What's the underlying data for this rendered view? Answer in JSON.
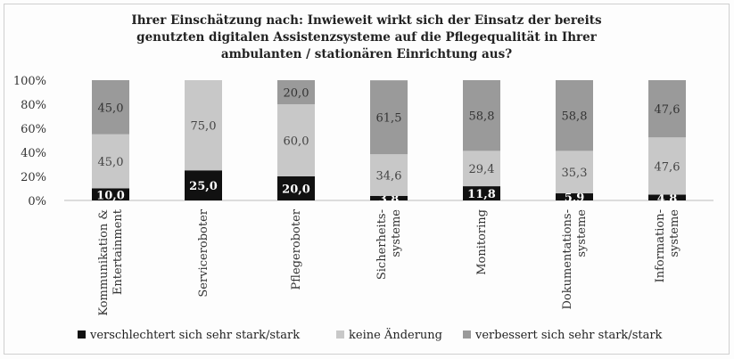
{
  "chart_data": {
    "type": "bar",
    "stacked": true,
    "title": [
      "Ihrer Einschätzung nach: Inwieweit wirkt sich der Einsatz der bereits",
      "genutzten digitalen Assistenzsysteme auf die Pflegequalität in Ihrer",
      "ambulanten / stationären Einrichtung aus?"
    ],
    "categories": [
      [
        "Kommunikation &",
        "Entertainment"
      ],
      [
        "Serviceroboter"
      ],
      [
        "Pflegeroboter"
      ],
      [
        "Sicherheits-",
        "systeme"
      ],
      [
        "Monitoring"
      ],
      [
        "Dokumentations-",
        "systeme"
      ],
      [
        "Information-",
        "systeme"
      ]
    ],
    "series": [
      {
        "name": "verschlechtert sich sehr stark/stark",
        "color": "#111111",
        "label_color": "#ffffff",
        "values": [
          10.0,
          25.0,
          20.0,
          3.8,
          11.8,
          5.9,
          4.8
        ],
        "labels": [
          "10,0",
          "25,0",
          "20,0",
          "3,8",
          "11,8",
          "5,9",
          "4,8"
        ]
      },
      {
        "name": "keine Änderung",
        "color": "#c8c8c8",
        "label_color": "#444444",
        "values": [
          45.0,
          75.0,
          60.0,
          34.6,
          29.4,
          35.3,
          47.6
        ],
        "labels": [
          "45,0",
          "75,0",
          "60,0",
          "34,6",
          "29,4",
          "35,3",
          "47,6"
        ]
      },
      {
        "name": "verbessert sich sehr stark/stark",
        "color": "#9a9a9a",
        "label_color": "#333333",
        "values": [
          45.0,
          0,
          20.0,
          61.5,
          58.8,
          58.8,
          47.6
        ],
        "labels": [
          "45,0",
          "",
          "20,0",
          "61,5",
          "58,8",
          "58,8",
          "47,6"
        ]
      }
    ],
    "y_ticks": [
      "0%",
      "20%",
      "40%",
      "60%",
      "80%",
      "100%"
    ],
    "ylim": [
      0,
      100
    ],
    "legend_position": "bottom",
    "grid": false
  }
}
